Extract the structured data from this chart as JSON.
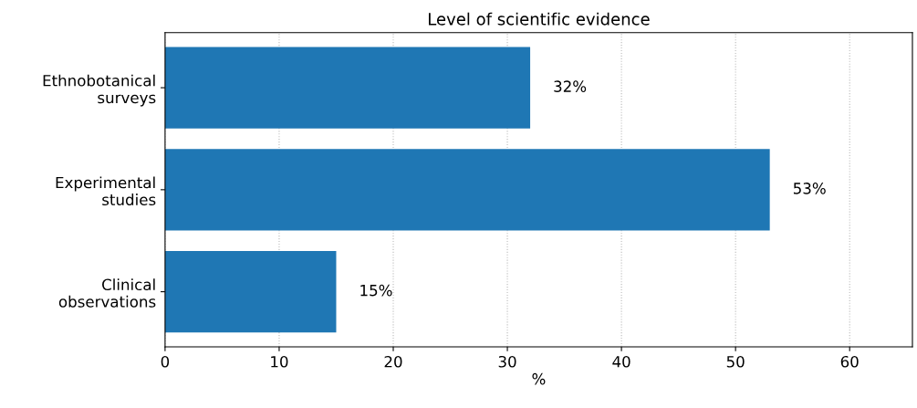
{
  "chart_data": {
    "type": "bar",
    "orientation": "horizontal",
    "title": "Level of scientific evidence",
    "xlabel": "%",
    "categories": [
      "Ethnobotanical\nsurveys",
      "Experimental\nstudies",
      "Clinical\nobservations"
    ],
    "values": [
      32,
      53,
      15
    ],
    "value_labels": [
      "32%",
      "53%",
      "15%"
    ],
    "color": "#1f77b4",
    "xlim": [
      0,
      65.5
    ],
    "xticks": [
      0,
      10,
      20,
      30,
      40,
      50,
      60
    ],
    "grid": "x"
  }
}
